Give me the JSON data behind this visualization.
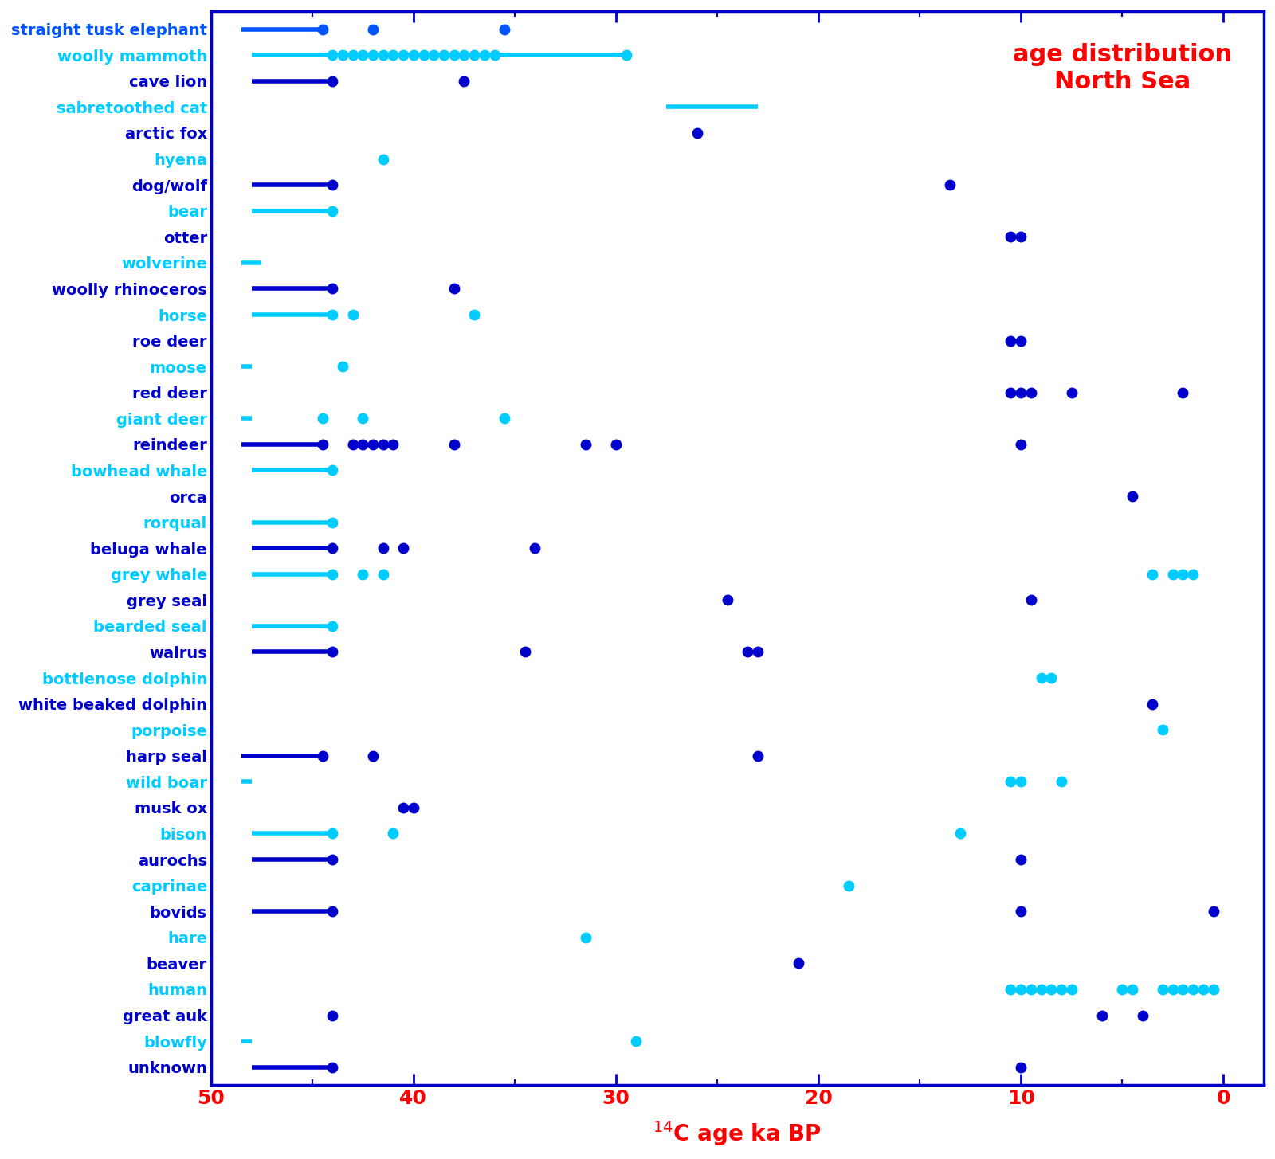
{
  "title": "age distribution\nNorth Sea",
  "xlabel": "$^{14}$C age ka BP",
  "xlim_left": 50,
  "xlim_right": -2,
  "species": [
    "straight tusk elephant",
    "woolly mammoth",
    "cave lion",
    "sabretoothed cat",
    "arctic fox",
    "hyena",
    "dog/wolf",
    "bear",
    "otter",
    "wolverine",
    "woolly rhinoceros",
    "horse",
    "roe deer",
    "moose",
    "red deer",
    "giant deer",
    "reindeer",
    "bowhead whale",
    "orca",
    "rorqual",
    "beluga whale",
    "grey whale",
    "grey seal",
    "bearded seal",
    "walrus",
    "bottlenose dolphin",
    "white beaked dolphin",
    "porpoise",
    "harp seal",
    "wild boar",
    "musk ox",
    "bison",
    "aurochs",
    "caprinae",
    "bovids",
    "hare",
    "beaver",
    "human",
    "great auk",
    "blowfly",
    "unknown"
  ],
  "species_colors": [
    "#0055ff",
    "#00ccff",
    "#0000cc",
    "#00ccff",
    "#0000cc",
    "#00ccff",
    "#0000cc",
    "#00ccff",
    "#0000cc",
    "#00ccff",
    "#0000cc",
    "#00ccff",
    "#0000cc",
    "#00ccff",
    "#0000cc",
    "#00ccff",
    "#0000cc",
    "#00ccff",
    "#0000cc",
    "#00ccff",
    "#0000cc",
    "#00ccff",
    "#0000cc",
    "#00ccff",
    "#0000cc",
    "#00ccff",
    "#0000cc",
    "#00ccff",
    "#0000cc",
    "#00ccff",
    "#0000cc",
    "#00ccff",
    "#0000cc",
    "#00ccff",
    "#0000cc",
    "#00ccff",
    "#0000cc",
    "#00ccff",
    "#0000cc",
    "#00ccff",
    "#0000cc"
  ],
  "species_data": {
    "straight tusk elephant": {
      "pts": [
        44.5,
        42.0,
        35.5
      ],
      "line": [
        48.5,
        44.5
      ]
    },
    "woolly mammoth": {
      "pts": [
        44.0,
        43.5,
        43.0,
        42.5,
        42.0,
        41.5,
        41.0,
        40.5,
        40.0,
        39.5,
        39.0,
        38.5,
        38.0,
        37.5,
        37.0,
        36.5,
        36.0,
        29.5
      ],
      "line": [
        48.0,
        29.5
      ]
    },
    "cave lion": {
      "pts": [
        44.0,
        37.5
      ],
      "line": [
        48.0,
        44.0
      ]
    },
    "sabretoothed cat": {
      "pts": [],
      "line": [
        27.5,
        23.0
      ]
    },
    "arctic fox": {
      "pts": [
        26.0
      ],
      "line": null
    },
    "hyena": {
      "pts": [
        41.5
      ],
      "line": null
    },
    "dog/wolf": {
      "pts": [
        44.0,
        13.5
      ],
      "line": [
        48.0,
        44.0
      ]
    },
    "bear": {
      "pts": [
        44.0
      ],
      "line": [
        48.0,
        44.0
      ]
    },
    "otter": {
      "pts": [
        10.5,
        10.0
      ],
      "line": null
    },
    "wolverine": {
      "pts": [],
      "line": [
        48.5,
        47.5
      ]
    },
    "woolly rhinoceros": {
      "pts": [
        44.0,
        38.0
      ],
      "line": [
        48.0,
        44.0
      ]
    },
    "horse": {
      "pts": [
        44.0,
        43.0,
        37.0
      ],
      "line": [
        48.0,
        44.0
      ]
    },
    "roe deer": {
      "pts": [
        10.5,
        10.0
      ],
      "line": null
    },
    "moose": {
      "pts": [
        43.5
      ],
      "line": [
        48.5,
        48.0
      ]
    },
    "red deer": {
      "pts": [
        10.5,
        10.0,
        9.5,
        7.5,
        2.0
      ],
      "line": null
    },
    "giant deer": {
      "pts": [
        44.5,
        42.5,
        35.5
      ],
      "line": [
        48.5,
        48.0
      ]
    },
    "reindeer": {
      "pts": [
        44.5,
        43.0,
        42.5,
        42.0,
        41.5,
        41.0,
        38.0,
        31.5,
        30.0,
        10.0
      ],
      "line": [
        48.5,
        44.5
      ]
    },
    "bowhead whale": {
      "pts": [
        44.0
      ],
      "line": [
        48.0,
        44.0
      ]
    },
    "orca": {
      "pts": [
        4.5
      ],
      "line": null
    },
    "rorqual": {
      "pts": [
        44.0
      ],
      "line": [
        48.0,
        44.0
      ]
    },
    "beluga whale": {
      "pts": [
        44.0,
        41.5,
        40.5,
        34.0
      ],
      "line": [
        48.0,
        44.0
      ]
    },
    "grey whale": {
      "pts": [
        44.0,
        42.5,
        41.5,
        3.5,
        2.5,
        2.0,
        1.5
      ],
      "line": [
        48.0,
        44.0
      ]
    },
    "grey seal": {
      "pts": [
        24.5,
        9.5
      ],
      "line": null
    },
    "bearded seal": {
      "pts": [
        44.0
      ],
      "line": [
        48.0,
        44.0
      ]
    },
    "walrus": {
      "pts": [
        44.0,
        34.5,
        23.5,
        23.0
      ],
      "line": [
        48.0,
        44.0
      ]
    },
    "bottlenose dolphin": {
      "pts": [
        9.0,
        8.5
      ],
      "line": null
    },
    "white beaked dolphin": {
      "pts": [
        3.5
      ],
      "line": null
    },
    "porpoise": {
      "pts": [
        3.0
      ],
      "line": null
    },
    "harp seal": {
      "pts": [
        44.5,
        42.0,
        23.0
      ],
      "line": [
        48.5,
        44.5
      ]
    },
    "wild boar": {
      "pts": [
        10.5,
        10.0,
        8.0
      ],
      "line": [
        48.5,
        48.0
      ]
    },
    "musk ox": {
      "pts": [
        40.5,
        40.0
      ],
      "line": null
    },
    "bison": {
      "pts": [
        44.0,
        41.0,
        13.0
      ],
      "line": [
        48.0,
        44.0
      ]
    },
    "aurochs": {
      "pts": [
        44.0,
        10.0
      ],
      "line": [
        48.0,
        44.0
      ]
    },
    "caprinae": {
      "pts": [
        18.5
      ],
      "line": null
    },
    "bovids": {
      "pts": [
        44.0,
        10.0,
        0.5
      ],
      "line": [
        48.0,
        44.0
      ]
    },
    "hare": {
      "pts": [
        31.5
      ],
      "line": null
    },
    "beaver": {
      "pts": [
        21.0
      ],
      "line": null
    },
    "human": {
      "pts": [
        10.5,
        10.0,
        9.5,
        9.0,
        8.5,
        8.0,
        7.5,
        5.0,
        4.5,
        3.0,
        2.5,
        2.0,
        1.5,
        1.0,
        0.5
      ],
      "line": null
    },
    "great auk": {
      "pts": [
        44.0,
        6.0,
        4.0
      ],
      "line": null
    },
    "blowfly": {
      "pts": [
        29.0
      ],
      "line": [
        48.5,
        48.0
      ]
    },
    "unknown": {
      "pts": [
        44.0,
        10.0
      ],
      "line": [
        48.0,
        44.0
      ]
    }
  }
}
